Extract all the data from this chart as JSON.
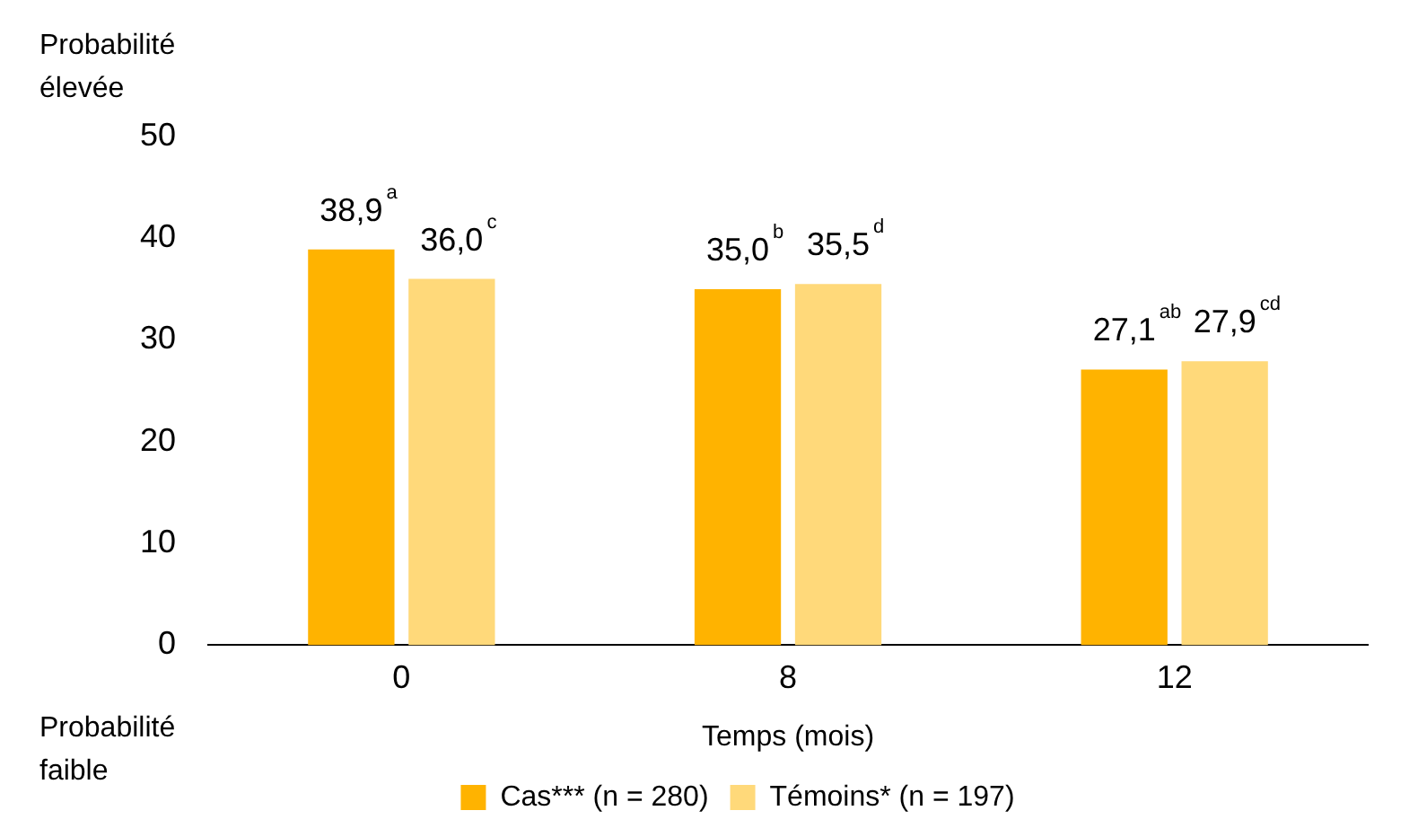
{
  "chart_data": {
    "type": "bar",
    "xlabel": "Temps (mois)",
    "categories": [
      "0",
      "8",
      "12"
    ],
    "series": [
      {
        "name": "Cas*** (n = 280)",
        "color": "#ffb300",
        "values": [
          38.9,
          35.0,
          27.1
        ],
        "value_labels": [
          "38,9$^{a}$",
          "35,0$^{b}$",
          "27,1$^{ab}$"
        ]
      },
      {
        "name": "Témoins* (n = 197)",
        "color": "#ffd97a",
        "values": [
          36.0,
          35.5,
          27.9
        ],
        "value_labels": [
          "36,0$^{c}$",
          "35,5$^{d}$",
          "27,9$^{cd}$"
        ]
      }
    ],
    "ylim": [
      0,
      50
    ],
    "yticks": [
      0,
      10,
      20,
      30,
      40,
      50
    ],
    "grid": false,
    "legend": "bottom",
    "annotations": [
      "Probabilité\nélevée",
      "Probabilité\nfaible"
    ]
  }
}
